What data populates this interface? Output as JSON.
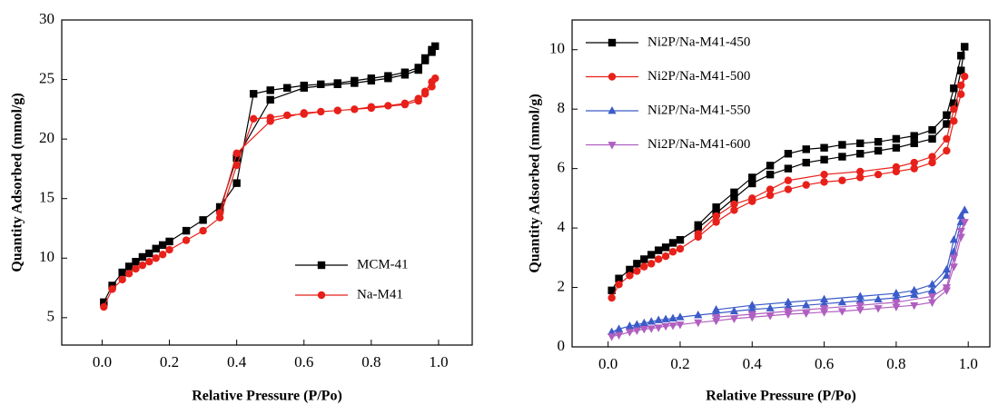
{
  "chart_data": [
    {
      "type": "line",
      "x_label": "Relative Pressure (P/Po)",
      "y_label": "Quantity Adsorbed (mmol/g)",
      "xlim": [
        -0.12,
        1.1
      ],
      "ylim": [
        2.7,
        30
      ],
      "xticks": [
        {
          "value": 0,
          "label": "0.0"
        },
        0.2,
        0.4,
        0.6,
        0.8,
        {
          "value": 1,
          "label": "1.0"
        }
      ],
      "yticks": [
        5,
        10,
        15,
        20,
        25,
        30
      ],
      "legend": "lower right",
      "series": [
        {
          "name": "MCM-41",
          "color": "#000000",
          "marker": "square",
          "x": [
            0.005,
            0.03,
            0.06,
            0.08,
            0.1,
            0.12,
            0.14,
            0.16,
            0.18,
            0.2,
            0.25,
            0.3,
            0.35,
            0.4,
            0.45,
            0.5,
            0.55,
            0.6,
            0.65,
            0.7,
            0.75,
            0.8,
            0.85,
            0.9,
            0.94,
            0.96,
            0.98,
            0.99,
            0.98,
            0.96,
            0.94,
            0.9,
            0.85,
            0.8,
            0.75,
            0.7,
            0.6,
            0.5,
            0.4,
            0.35
          ],
          "values": [
            6.3,
            7.7,
            8.8,
            9.3,
            9.7,
            10.1,
            10.4,
            10.8,
            11.1,
            11.4,
            12.3,
            13.2,
            14.3,
            16.3,
            23.8,
            24.1,
            24.3,
            24.5,
            24.6,
            24.7,
            24.9,
            25.1,
            25.3,
            25.6,
            26.0,
            26.6,
            27.3,
            27.8,
            27.5,
            26.8,
            25.8,
            25.4,
            25.1,
            24.9,
            24.7,
            24.6,
            24.3,
            23.3,
            18.4,
            14.1
          ]
        },
        {
          "name": "Na-M41",
          "color": "#e8201a",
          "marker": "circle",
          "x": [
            0.005,
            0.03,
            0.06,
            0.08,
            0.1,
            0.12,
            0.14,
            0.16,
            0.18,
            0.2,
            0.25,
            0.3,
            0.35,
            0.4,
            0.45,
            0.5,
            0.55,
            0.6,
            0.65,
            0.7,
            0.75,
            0.8,
            0.85,
            0.9,
            0.94,
            0.96,
            0.98,
            0.99,
            0.98,
            0.96,
            0.94,
            0.9,
            0.8,
            0.7,
            0.6,
            0.5,
            0.4,
            0.35
          ],
          "values": [
            5.9,
            7.4,
            8.2,
            8.7,
            9.1,
            9.4,
            9.7,
            10.0,
            10.3,
            10.7,
            11.5,
            12.3,
            13.4,
            17.8,
            21.7,
            21.8,
            22.0,
            22.1,
            22.3,
            22.4,
            22.5,
            22.7,
            22.8,
            23.0,
            23.4,
            23.8,
            24.4,
            25.1,
            24.8,
            24.0,
            23.2,
            22.9,
            22.6,
            22.4,
            22.2,
            21.5,
            18.8,
            13.8
          ]
        }
      ]
    },
    {
      "type": "line",
      "x_label": "Relative Pressure (P/Po)",
      "y_label": "Quantity Adsorbed (mmol/g)",
      "xlim": [
        -0.1,
        1.06
      ],
      "ylim": [
        0,
        11
      ],
      "xticks": [
        {
          "value": 0,
          "label": "0.0"
        },
        0.2,
        0.4,
        0.6,
        0.8,
        {
          "value": 1,
          "label": "1.0"
        }
      ],
      "yticks": [
        0,
        2,
        4,
        6,
        8,
        10
      ],
      "legend": "upper left",
      "series": [
        {
          "name": "Ni2P/Na-M41-450",
          "color": "#000000",
          "marker": "square",
          "x": [
            0.01,
            0.03,
            0.06,
            0.08,
            0.1,
            0.12,
            0.14,
            0.16,
            0.18,
            0.2,
            0.25,
            0.3,
            0.35,
            0.4,
            0.45,
            0.5,
            0.55,
            0.6,
            0.65,
            0.7,
            0.75,
            0.8,
            0.85,
            0.9,
            0.94,
            0.96,
            0.98,
            0.99,
            0.98,
            0.96,
            0.94,
            0.9,
            0.85,
            0.8,
            0.75,
            0.7,
            0.65,
            0.6,
            0.55,
            0.5,
            0.45,
            0.4,
            0.35,
            0.3,
            0.25
          ],
          "values": [
            1.9,
            2.3,
            2.6,
            2.8,
            2.95,
            3.1,
            3.25,
            3.35,
            3.5,
            3.6,
            4.0,
            4.5,
            5.0,
            5.5,
            5.8,
            6.0,
            6.2,
            6.3,
            6.4,
            6.5,
            6.6,
            6.7,
            6.85,
            7.0,
            7.5,
            8.2,
            9.3,
            10.1,
            9.8,
            8.7,
            7.8,
            7.3,
            7.1,
            7.0,
            6.9,
            6.85,
            6.8,
            6.7,
            6.65,
            6.5,
            6.1,
            5.7,
            5.2,
            4.7,
            4.1
          ]
        },
        {
          "name": "Ni2P/Na-M41-500",
          "color": "#e8201a",
          "marker": "circle",
          "x": [
            0.01,
            0.03,
            0.06,
            0.08,
            0.1,
            0.12,
            0.14,
            0.16,
            0.18,
            0.2,
            0.25,
            0.3,
            0.35,
            0.4,
            0.45,
            0.5,
            0.55,
            0.6,
            0.65,
            0.7,
            0.75,
            0.8,
            0.85,
            0.9,
            0.94,
            0.96,
            0.98,
            0.99,
            0.98,
            0.96,
            0.94,
            0.9,
            0.85,
            0.8,
            0.7,
            0.6,
            0.5,
            0.45,
            0.4,
            0.35,
            0.3,
            0.25
          ],
          "values": [
            1.65,
            2.1,
            2.4,
            2.55,
            2.7,
            2.8,
            2.95,
            3.05,
            3.2,
            3.3,
            3.7,
            4.2,
            4.6,
            4.9,
            5.1,
            5.3,
            5.45,
            5.55,
            5.6,
            5.7,
            5.8,
            5.9,
            6.0,
            6.2,
            6.6,
            7.6,
            8.5,
            9.1,
            8.8,
            8.0,
            7.0,
            6.4,
            6.2,
            6.05,
            5.9,
            5.8,
            5.6,
            5.3,
            5.0,
            4.8,
            4.4,
            3.8
          ]
        },
        {
          "name": "Ni2P/Na-M41-550",
          "color": "#3b5bc8",
          "marker": "triangle-up",
          "x": [
            0.01,
            0.03,
            0.06,
            0.08,
            0.1,
            0.12,
            0.14,
            0.16,
            0.18,
            0.2,
            0.25,
            0.3,
            0.35,
            0.4,
            0.45,
            0.5,
            0.55,
            0.6,
            0.65,
            0.7,
            0.75,
            0.8,
            0.85,
            0.9,
            0.94,
            0.96,
            0.98,
            0.99,
            0.98,
            0.96,
            0.94,
            0.9,
            0.85,
            0.8,
            0.7,
            0.6,
            0.5,
            0.4,
            0.3
          ],
          "values": [
            0.5,
            0.6,
            0.7,
            0.75,
            0.8,
            0.85,
            0.9,
            0.93,
            0.96,
            1.0,
            1.07,
            1.13,
            1.2,
            1.26,
            1.3,
            1.35,
            1.4,
            1.45,
            1.5,
            1.55,
            1.6,
            1.65,
            1.75,
            1.9,
            2.4,
            3.2,
            4.2,
            4.6,
            4.4,
            3.6,
            2.6,
            2.1,
            1.9,
            1.8,
            1.7,
            1.6,
            1.5,
            1.4,
            1.25
          ]
        },
        {
          "name": "Ni2P/Na-M41-600",
          "color": "#b05fc0",
          "marker": "triangle-down",
          "x": [
            0.01,
            0.03,
            0.06,
            0.08,
            0.1,
            0.12,
            0.14,
            0.16,
            0.18,
            0.2,
            0.25,
            0.3,
            0.35,
            0.4,
            0.45,
            0.5,
            0.55,
            0.6,
            0.65,
            0.7,
            0.75,
            0.8,
            0.85,
            0.9,
            0.94,
            0.96,
            0.98,
            0.99,
            0.98,
            0.96,
            0.94,
            0.9,
            0.8,
            0.7,
            0.6,
            0.5,
            0.4,
            0.3
          ],
          "values": [
            0.35,
            0.4,
            0.5,
            0.55,
            0.6,
            0.62,
            0.65,
            0.7,
            0.72,
            0.75,
            0.82,
            0.88,
            0.95,
            1.0,
            1.05,
            1.1,
            1.13,
            1.17,
            1.2,
            1.25,
            1.3,
            1.35,
            1.4,
            1.5,
            1.9,
            2.7,
            3.7,
            4.2,
            3.9,
            3.0,
            2.0,
            1.7,
            1.5,
            1.4,
            1.3,
            1.2,
            1.1,
            1.0
          ]
        }
      ]
    }
  ]
}
